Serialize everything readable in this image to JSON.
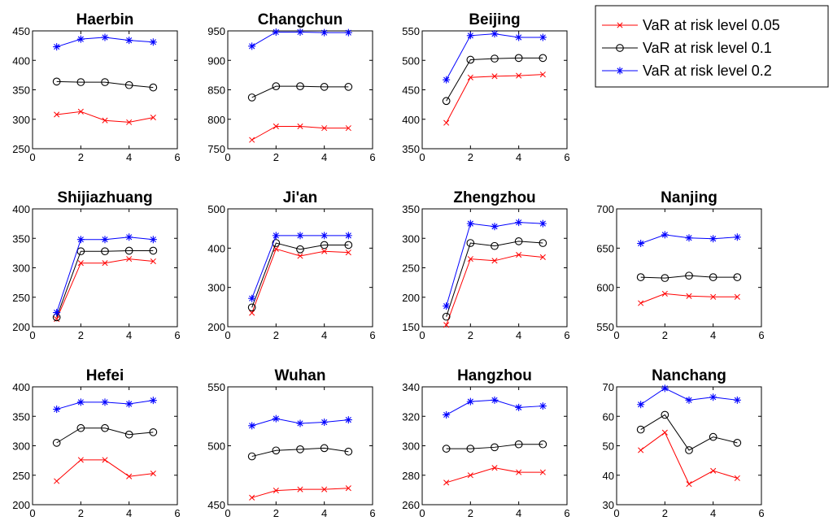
{
  "chart_data": [
    {
      "type": "line",
      "title": "Haerbin",
      "x": [
        1,
        2,
        3,
        4,
        5
      ],
      "xlim": [
        0,
        6
      ],
      "xticks": [
        0,
        2,
        4,
        6
      ],
      "ylim": [
        250,
        450
      ],
      "yticks": [
        250,
        300,
        350,
        400,
        450
      ],
      "series": [
        {
          "name": "VaR at risk level 0.05",
          "values": [
            308,
            313,
            298,
            295,
            303
          ]
        },
        {
          "name": "VaR at risk level 0.1",
          "values": [
            364,
            363,
            363,
            358,
            354
          ]
        },
        {
          "name": "VaR at risk level 0.2",
          "values": [
            423,
            436,
            439,
            434,
            431
          ]
        }
      ]
    },
    {
      "type": "line",
      "title": "Changchun",
      "x": [
        1,
        2,
        3,
        4,
        5
      ],
      "xlim": [
        0,
        6
      ],
      "xticks": [
        0,
        2,
        4,
        6
      ],
      "ylim": [
        750,
        950
      ],
      "yticks": [
        750,
        800,
        850,
        900,
        950
      ],
      "series": [
        {
          "name": "VaR at risk level 0.05",
          "values": [
            765,
            788,
            788,
            785,
            785
          ]
        },
        {
          "name": "VaR at risk level 0.1",
          "values": [
            837,
            856,
            856,
            855,
            855
          ]
        },
        {
          "name": "VaR at risk level 0.2",
          "values": [
            924,
            948,
            948,
            947,
            947
          ]
        }
      ]
    },
    {
      "type": "line",
      "title": "Beijing",
      "x": [
        1,
        2,
        3,
        4,
        5
      ],
      "xlim": [
        0,
        6
      ],
      "xticks": [
        0,
        2,
        4,
        6
      ],
      "ylim": [
        350,
        550
      ],
      "yticks": [
        350,
        400,
        450,
        500,
        550
      ],
      "series": [
        {
          "name": "VaR at risk level 0.05",
          "values": [
            394,
            471,
            473,
            474,
            476
          ]
        },
        {
          "name": "VaR at risk level 0.1",
          "values": [
            431,
            501,
            503,
            504,
            504
          ]
        },
        {
          "name": "VaR at risk level 0.2",
          "values": [
            467,
            542,
            545,
            539,
            539
          ]
        }
      ]
    },
    {
      "type": "line",
      "title": "Shijiazhuang",
      "x": [
        1,
        2,
        3,
        4,
        5
      ],
      "xlim": [
        0,
        6
      ],
      "xticks": [
        0,
        2,
        4,
        6
      ],
      "ylim": [
        200,
        400
      ],
      "yticks": [
        200,
        250,
        300,
        350,
        400
      ],
      "series": [
        {
          "name": "VaR at risk level 0.05",
          "values": [
            213,
            308,
            308,
            315,
            311
          ]
        },
        {
          "name": "VaR at risk level 0.1",
          "values": [
            216,
            328,
            328,
            329,
            329
          ]
        },
        {
          "name": "VaR at risk level 0.2",
          "values": [
            224,
            348,
            348,
            352,
            348
          ]
        }
      ]
    },
    {
      "type": "line",
      "title": "Ji'an",
      "x": [
        1,
        2,
        3,
        4,
        5
      ],
      "xlim": [
        0,
        6
      ],
      "xticks": [
        0,
        2,
        4,
        6
      ],
      "ylim": [
        200,
        500
      ],
      "yticks": [
        200,
        300,
        400,
        500
      ],
      "series": [
        {
          "name": "VaR at risk level 0.05",
          "values": [
            235,
            398,
            380,
            392,
            389
          ]
        },
        {
          "name": "VaR at risk level 0.1",
          "values": [
            249,
            413,
            397,
            408,
            408
          ]
        },
        {
          "name": "VaR at risk level 0.2",
          "values": [
            272,
            432,
            432,
            432,
            432
          ]
        }
      ]
    },
    {
      "type": "line",
      "title": "Zhengzhou",
      "x": [
        1,
        2,
        3,
        4,
        5
      ],
      "xlim": [
        0,
        6
      ],
      "xticks": [
        0,
        2,
        4,
        6
      ],
      "ylim": [
        150,
        350
      ],
      "yticks": [
        150,
        200,
        250,
        300,
        350
      ],
      "series": [
        {
          "name": "VaR at risk level 0.05",
          "values": [
            153,
            265,
            262,
            272,
            268
          ]
        },
        {
          "name": "VaR at risk level 0.1",
          "values": [
            167,
            292,
            287,
            295,
            292
          ]
        },
        {
          "name": "VaR at risk level 0.2",
          "values": [
            185,
            325,
            320,
            327,
            325
          ]
        }
      ]
    },
    {
      "type": "line",
      "title": "Nanjing",
      "x": [
        1,
        2,
        3,
        4,
        5
      ],
      "xlim": [
        0,
        6
      ],
      "xticks": [
        0,
        2,
        4,
        6
      ],
      "ylim": [
        550,
        700
      ],
      "yticks": [
        550,
        600,
        650,
        700
      ],
      "series": [
        {
          "name": "VaR at risk level 0.05",
          "values": [
            580,
            592,
            589,
            588,
            588
          ]
        },
        {
          "name": "VaR at risk level 0.1",
          "values": [
            613,
            612,
            615,
            613,
            613
          ]
        },
        {
          "name": "VaR at risk level 0.2",
          "values": [
            656,
            667,
            663,
            662,
            664
          ]
        }
      ]
    },
    {
      "type": "line",
      "title": "Hefei",
      "x": [
        1,
        2,
        3,
        4,
        5
      ],
      "xlim": [
        0,
        6
      ],
      "xticks": [
        0,
        2,
        4,
        6
      ],
      "ylim": [
        200,
        400
      ],
      "yticks": [
        200,
        250,
        300,
        350,
        400
      ],
      "series": [
        {
          "name": "VaR at risk level 0.05",
          "values": [
            240,
            276,
            276,
            248,
            253
          ]
        },
        {
          "name": "VaR at risk level 0.1",
          "values": [
            305,
            330,
            330,
            319,
            323
          ]
        },
        {
          "name": "VaR at risk level 0.2",
          "values": [
            362,
            374,
            374,
            371,
            377
          ]
        }
      ]
    },
    {
      "type": "line",
      "title": "Wuhan",
      "x": [
        1,
        2,
        3,
        4,
        5
      ],
      "xlim": [
        0,
        6
      ],
      "xticks": [
        0,
        2,
        4,
        6
      ],
      "ylim": [
        450,
        550
      ],
      "yticks": [
        450,
        500,
        550
      ],
      "series": [
        {
          "name": "VaR at risk level 0.05",
          "values": [
            456,
            462,
            463,
            463,
            464
          ]
        },
        {
          "name": "VaR at risk level 0.1",
          "values": [
            491,
            496,
            497,
            498,
            495
          ]
        },
        {
          "name": "VaR at risk level 0.2",
          "values": [
            517,
            523,
            519,
            520,
            522
          ]
        }
      ]
    },
    {
      "type": "line",
      "title": "Hangzhou",
      "x": [
        1,
        2,
        3,
        4,
        5
      ],
      "xlim": [
        0,
        6
      ],
      "xticks": [
        0,
        2,
        4,
        6
      ],
      "ylim": [
        260,
        340
      ],
      "yticks": [
        260,
        280,
        300,
        320,
        340
      ],
      "series": [
        {
          "name": "VaR at risk level 0.05",
          "values": [
            275,
            280,
            285,
            282,
            282
          ]
        },
        {
          "name": "VaR at risk level 0.1",
          "values": [
            298,
            298,
            299,
            301,
            301
          ]
        },
        {
          "name": "VaR at risk level 0.2",
          "values": [
            321,
            330,
            331,
            326,
            327
          ]
        }
      ]
    },
    {
      "type": "line",
      "title": "Nanchang",
      "x": [
        1,
        2,
        3,
        4,
        5
      ],
      "xlim": [
        0,
        6
      ],
      "xticks": [
        0,
        2,
        4,
        6
      ],
      "ylim": [
        30,
        70
      ],
      "yticks": [
        30,
        40,
        50,
        60,
        70
      ],
      "series": [
        {
          "name": "VaR at risk level 0.05",
          "values": [
            48.5,
            54.5,
            37,
            41.5,
            39
          ]
        },
        {
          "name": "VaR at risk level 0.1",
          "values": [
            55.5,
            60.5,
            48.5,
            53,
            51
          ]
        },
        {
          "name": "VaR at risk level 0.2",
          "values": [
            64,
            69.5,
            65.5,
            66.5,
            65.5
          ]
        }
      ]
    }
  ],
  "legend": {
    "position": "top-right",
    "entries": [
      {
        "label": "VaR at risk level 0.05",
        "color": "#ff0000",
        "marker": "x-mark-icon"
      },
      {
        "label": "VaR at risk level 0.1",
        "color": "#000000",
        "marker": "circle-marker-icon"
      },
      {
        "label": "VaR at risk level 0.2",
        "color": "#0000ff",
        "marker": "asterisk-marker-icon"
      }
    ]
  },
  "series_colors": [
    "#ff0000",
    "#000000",
    "#0000ff"
  ]
}
